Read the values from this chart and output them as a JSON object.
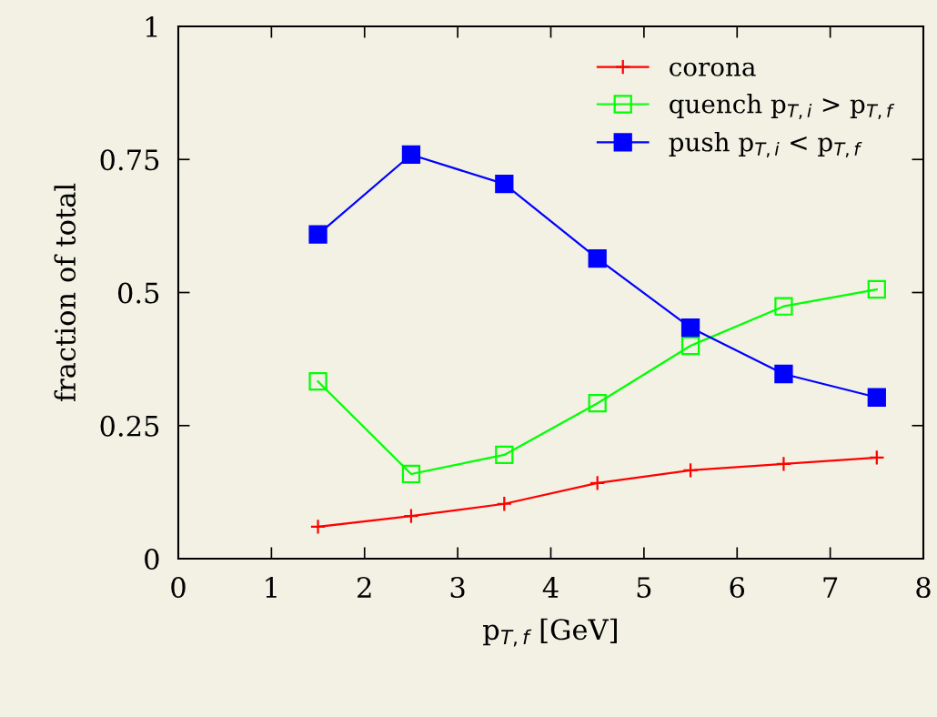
{
  "chart_data": {
    "type": "line",
    "xlabel": "p$_{T,f}$ [GeV]",
    "ylabel": "fraction of total",
    "x": [
      1.5,
      2.5,
      3.5,
      4.5,
      5.5,
      6.5,
      7.5
    ],
    "series": [
      {
        "name": "corona",
        "color": "#ff0000",
        "marker": "cross",
        "values": [
          0.06,
          0.08,
          0.103,
          0.142,
          0.166,
          0.178,
          0.19
        ]
      },
      {
        "name": "quench p$_{T,i}$ > p$_{T,f}$",
        "color": "#00ff00",
        "marker": "square-open",
        "values": [
          0.333,
          0.159,
          0.195,
          0.292,
          0.4,
          0.474,
          0.506
        ]
      },
      {
        "name": "push p$_{T,i}$ < p$_{T,f}$",
        "color": "#0000ff",
        "marker": "square",
        "values": [
          0.609,
          0.759,
          0.704,
          0.564,
          0.434,
          0.347,
          0.303
        ]
      }
    ],
    "xlim": [
      0,
      8
    ],
    "xticks": [
      0,
      1,
      2,
      3,
      4,
      5,
      6,
      7,
      8
    ],
    "ylim": [
      0,
      1
    ],
    "yticks": [
      0,
      0.25,
      0.5,
      0.75,
      1
    ],
    "grid": false,
    "legend": "top right",
    "line_style": "solid"
  }
}
